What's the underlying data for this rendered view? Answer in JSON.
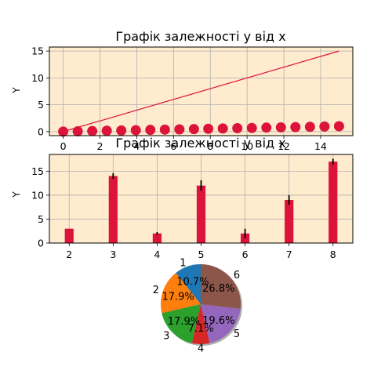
{
  "chart_data": [
    {
      "type": "scatter",
      "title": "Графік залежності y від x",
      "xlabel": "",
      "ylabel": "Y",
      "xlim": [
        -0.75,
        15.75
      ],
      "ylim": [
        -0.75,
        15.75
      ],
      "xticks": [
        0,
        2,
        4,
        6,
        8,
        10,
        12,
        14
      ],
      "yticks": [
        0,
        5,
        10,
        15
      ],
      "grid": true,
      "background": "#ffebcd",
      "marker_color": "#dc143c",
      "line_color": "#dc143c",
      "series": [
        {
          "type": "scatter",
          "x": [
            0,
            0.79,
            1.58,
            2.37,
            3.16,
            3.95,
            4.74,
            5.53,
            6.32,
            7.11,
            7.89,
            8.68,
            9.47,
            10.26,
            11.05,
            11.84,
            12.63,
            13.42,
            14.21,
            15
          ],
          "y": [
            0,
            0.05,
            0.1,
            0.16,
            0.21,
            0.26,
            0.32,
            0.37,
            0.42,
            0.47,
            0.53,
            0.58,
            0.63,
            0.68,
            0.74,
            0.79,
            0.84,
            0.89,
            0.95,
            1.0
          ]
        },
        {
          "type": "line",
          "x": [
            0,
            15
          ],
          "y": [
            0,
            15
          ]
        }
      ]
    },
    {
      "type": "bar",
      "title": "Графік залежності y від x",
      "xlabel": "",
      "ylabel": "Y",
      "xlim": [
        1.55,
        8.45
      ],
      "ylim": [
        0,
        18.5
      ],
      "xticks": [
        2,
        3,
        4,
        5,
        6,
        7,
        8
      ],
      "yticks": [
        0,
        5,
        10,
        15
      ],
      "grid": true,
      "background": "#ffebcd",
      "bar_color": "#dc143c",
      "bar_width": 0.2,
      "x": [
        2,
        3,
        4,
        5,
        6,
        7,
        8
      ],
      "values": [
        3,
        14,
        2,
        12,
        2,
        9,
        17
      ],
      "errors": [
        0,
        0.6,
        0.3,
        1.1,
        1.0,
        1.0,
        0.6
      ]
    },
    {
      "type": "pie",
      "labels": [
        "1",
        "2",
        "3",
        "4",
        "5",
        "6"
      ],
      "values": [
        10.7,
        17.9,
        17.9,
        7.1,
        19.6,
        26.8
      ],
      "pct_labels": [
        "10.7%",
        "17.9%",
        "17.9%",
        "7.1%",
        "19.6%",
        "26.8%"
      ],
      "colors": [
        "#1f77b4",
        "#ff7f0e",
        "#2ca02c",
        "#d62728",
        "#9467bd",
        "#8c564b"
      ],
      "start_angle": 90,
      "shadow": true
    }
  ]
}
